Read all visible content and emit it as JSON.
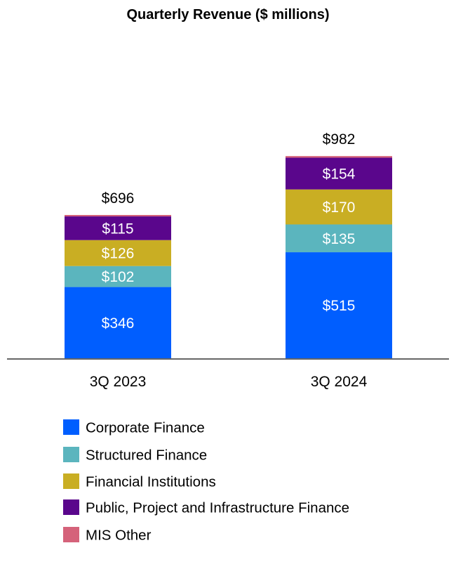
{
  "chart_data": {
    "type": "bar",
    "stacked": true,
    "title": "Quarterly Revenue ($ millions)",
    "xlabel": "",
    "ylabel": "",
    "categories": [
      "3Q 2023",
      "3Q 2024"
    ],
    "series": [
      {
        "name": "Corporate Finance",
        "values": [
          346,
          515
        ],
        "labels": [
          "$346",
          "$515"
        ],
        "color": "#005EFF"
      },
      {
        "name": "Structured Finance",
        "values": [
          102,
          135
        ],
        "labels": [
          "$102",
          "$135"
        ],
        "color": "#5BB5BE"
      },
      {
        "name": "Financial Institutions",
        "values": [
          126,
          170
        ],
        "labels": [
          "$126",
          "$170"
        ],
        "color": "#C9AE23"
      },
      {
        "name": "Public, Project and Infrastructure Finance",
        "values": [
          115,
          154
        ],
        "labels": [
          "$115",
          "$154"
        ],
        "color": "#5A068C"
      },
      {
        "name": "MIS Other",
        "values": [
          7,
          8
        ],
        "labels": [
          "",
          ""
        ],
        "color": "#D5627A"
      }
    ],
    "totals": [
      696,
      982
    ],
    "total_labels": [
      "$696",
      "$982"
    ],
    "grid": false,
    "legend_placement": "bottom-left"
  }
}
